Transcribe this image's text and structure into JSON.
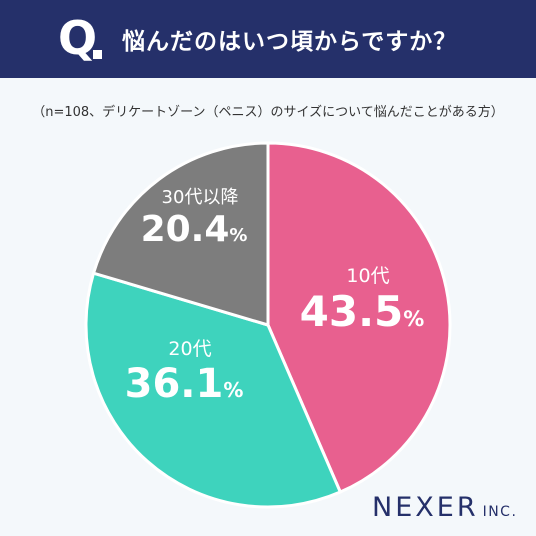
{
  "header": {
    "q_letter": "Q",
    "question": "悩んだのはいつ頃からですか？"
  },
  "note": "（n=108、デリケートゾーン（ペニス）のサイズについて悩んだことがある方）",
  "logo": {
    "main": "NEXER",
    "sub": "INC."
  },
  "chart_data": {
    "type": "pie",
    "title": "悩んだのはいつ頃からですか？",
    "slices": [
      {
        "label": "10代",
        "value": 43.5,
        "display": "43.5",
        "unit": "%",
        "color": "#e8608f"
      },
      {
        "label": "20代",
        "value": 36.1,
        "display": "36.1",
        "unit": "%",
        "color": "#3ed3bd"
      },
      {
        "label": "30代以降",
        "value": 20.4,
        "display": "20.4",
        "unit": "%",
        "color": "#7d7d7d"
      }
    ],
    "start": "12 o'clock",
    "direction": "clockwise"
  }
}
